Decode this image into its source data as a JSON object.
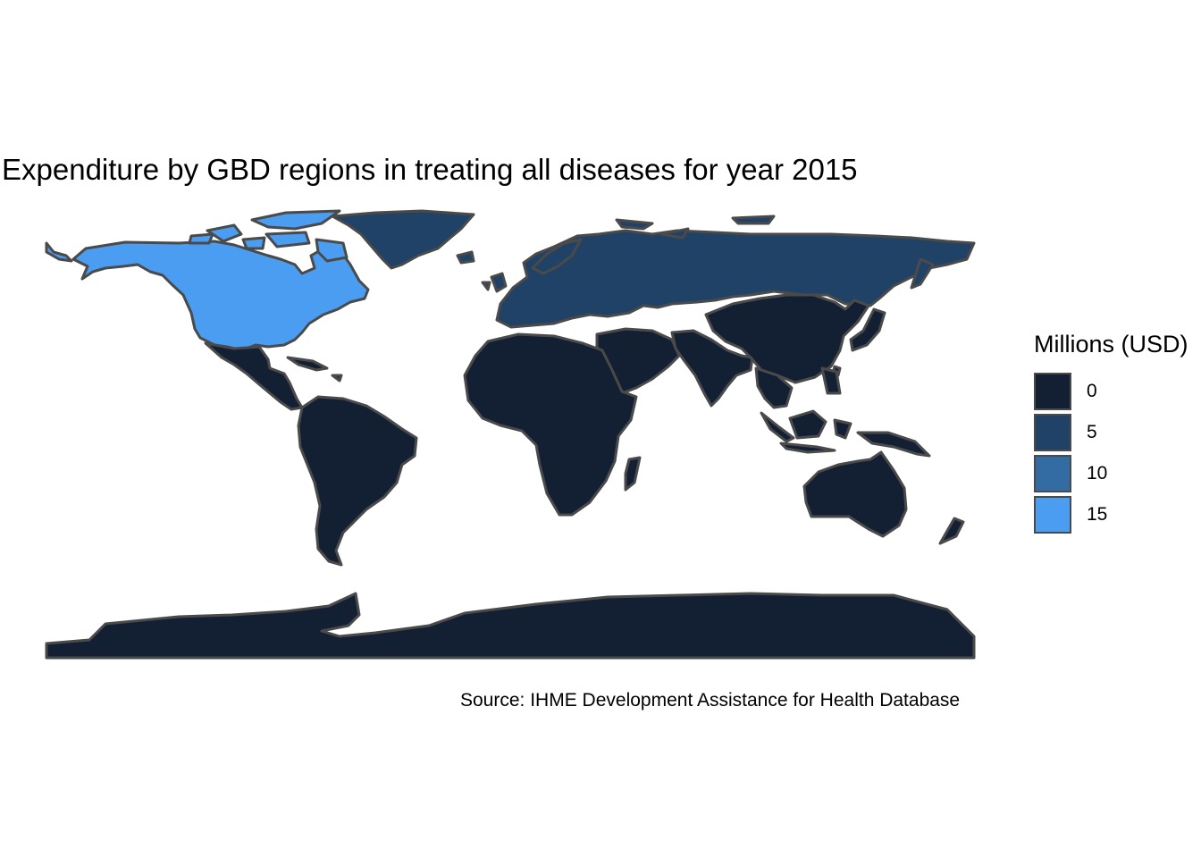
{
  "title": "Expenditure by GBD regions in treating all diseases for year 2015",
  "caption": "Source: IHME Development Assistance for Health Database",
  "legend": {
    "title": "Millions (USD)",
    "breaks": [
      {
        "label": "0",
        "value": 0,
        "color": "#132033"
      },
      {
        "label": "5",
        "value": 5,
        "color": "#1f4266"
      },
      {
        "label": "10",
        "value": 10,
        "color": "#336ca3"
      },
      {
        "label": "15",
        "value": 15,
        "color": "#4a9df0"
      }
    ]
  },
  "style": {
    "border_color": "#4a4a4a",
    "background": "#ffffff"
  },
  "regions": [
    {
      "name": "North America",
      "value_millions_usd": 16,
      "color": "#4a9df0"
    },
    {
      "name": "Greenland",
      "value_millions_usd": 5,
      "color": "#1f4266"
    },
    {
      "name": "Europe & Russia",
      "value_millions_usd": 5,
      "color": "#1f4266"
    },
    {
      "name": "Latin America",
      "value_millions_usd": 0,
      "color": "#132033"
    },
    {
      "name": "Africa",
      "value_millions_usd": 0,
      "color": "#132033"
    },
    {
      "name": "Middle East",
      "value_millions_usd": 0,
      "color": "#132033"
    },
    {
      "name": "South Asia",
      "value_millions_usd": 0,
      "color": "#132033"
    },
    {
      "name": "East Asia",
      "value_millions_usd": 0,
      "color": "#132033"
    },
    {
      "name": "Southeast Asia",
      "value_millions_usd": 0,
      "color": "#132033"
    },
    {
      "name": "Oceania",
      "value_millions_usd": 0,
      "color": "#132033"
    },
    {
      "name": "Antarctica",
      "value_millions_usd": 0,
      "color": "#132033"
    }
  ]
}
